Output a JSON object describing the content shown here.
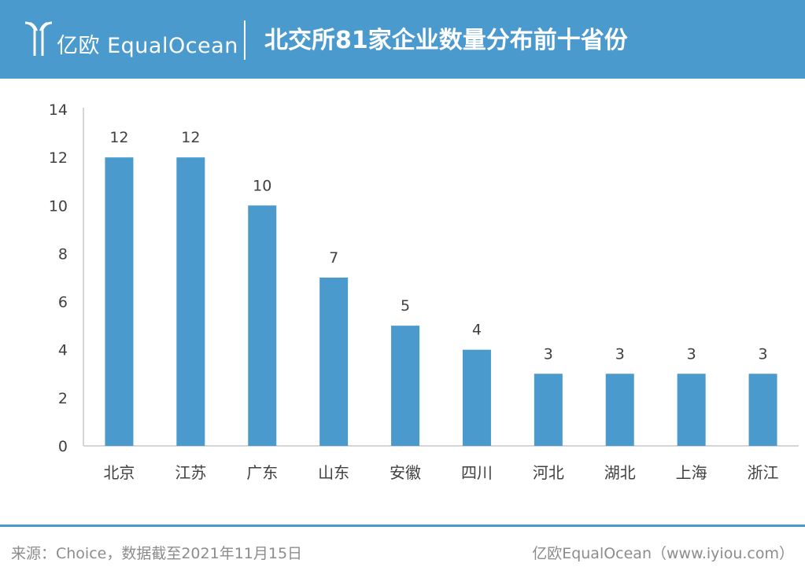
{
  "header": {
    "logo_text": "亿欧 EqualOcean",
    "title": "北交所81家企业数量分布前十省份",
    "background_color": "#4a9acd"
  },
  "chart_data": {
    "type": "bar",
    "categories": [
      "北京",
      "江苏",
      "广东",
      "山东",
      "安徽",
      "四川",
      "河北",
      "湖北",
      "上海",
      "浙江"
    ],
    "values": [
      12,
      12,
      10,
      7,
      5,
      4,
      3,
      3,
      3,
      3
    ],
    "data_labels": [
      "12",
      "12",
      "10",
      "7",
      "5",
      "4",
      "3",
      "3",
      "3",
      "3"
    ],
    "yticks": [
      "0",
      "2",
      "4",
      "6",
      "8",
      "10",
      "12",
      "14"
    ],
    "ylim": [
      0,
      14
    ],
    "bar_color": "#4a9acd",
    "grid": false,
    "xlabel": "",
    "ylabel": ""
  },
  "footer": {
    "source": "来源：Choice，数据截至2021年11月15日",
    "brand": "亿欧EqualOcean（www.iyiou.com）"
  }
}
